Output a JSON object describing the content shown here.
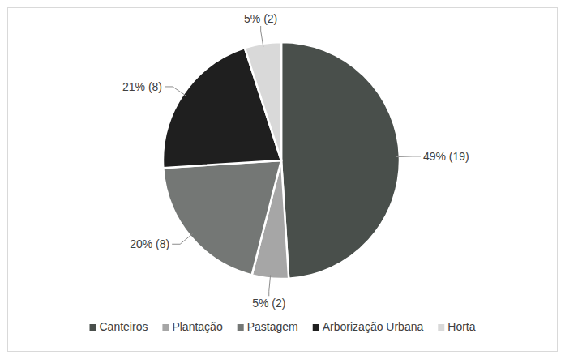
{
  "chart_data": {
    "type": "pie",
    "categories": [
      "Canteiros",
      "Plantação",
      "Pastagem",
      "Arborização Urbana",
      "Horta"
    ],
    "values": [
      49,
      5,
      20,
      21,
      5
    ],
    "value_labels": [
      "49% (19)",
      "5% (2)",
      "20% (8)",
      "21% (8)",
      "5% (2)"
    ],
    "colors": [
      "#494f4b",
      "#a6a6a6",
      "#747775",
      "#1f1f1f",
      "#d9d9d9"
    ],
    "data_labels": true,
    "legend": "bottom"
  }
}
